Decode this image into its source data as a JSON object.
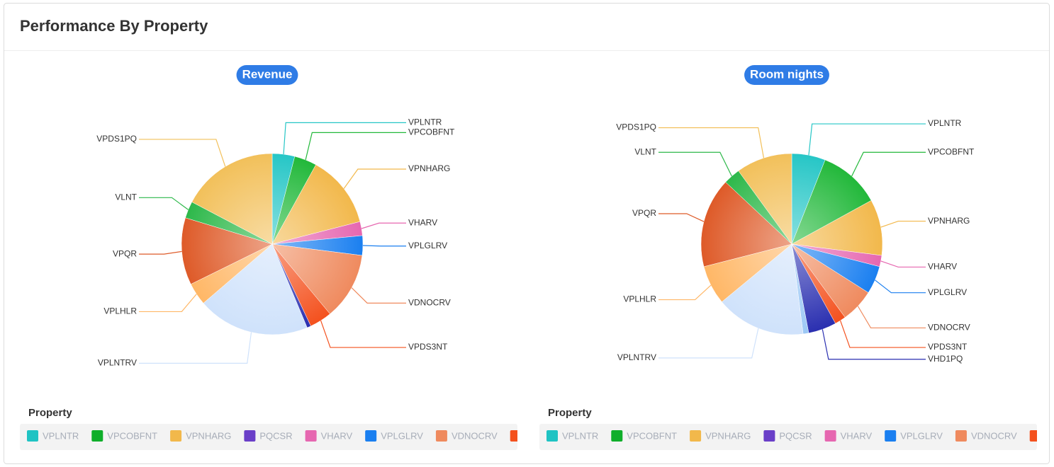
{
  "card_title": "Performance By Property",
  "chart_data": [
    {
      "type": "pie",
      "title": "Revenue",
      "legend_title": "Property",
      "categories": [
        "VPLNTR",
        "VPCOBFNT",
        "VPNHARG",
        "VHARV",
        "VPLGLRV",
        "VDNOCRV",
        "VPDS3NT",
        null,
        "VPLNTRV",
        "VPLHLR",
        "VPQR",
        "VLNT",
        "VPDS1PQ"
      ],
      "values": [
        4,
        4,
        13,
        2.5,
        3.5,
        12,
        4,
        0.7,
        20,
        4,
        12,
        3,
        17.3
      ],
      "colors": [
        "#26c6c6",
        "#22b83a",
        "#f2b84b",
        "#e667b0",
        "#1a7ff0",
        "#ef8a5e",
        "#f4511e",
        "#2a2fb0",
        "#cfe2fb",
        "#ffb766",
        "#de5a28",
        "#2db84a",
        "#f2c05a"
      ],
      "legend": [
        {
          "name": "VPLNTR",
          "color": "#1fc3c3"
        },
        {
          "name": "VPCOBFNT",
          "color": "#0fae2a"
        },
        {
          "name": "VPNHARG",
          "color": "#f2b84b"
        },
        {
          "name": "PQCSR",
          "color": "#6a3fc8"
        },
        {
          "name": "VHARV",
          "color": "#e667b0"
        },
        {
          "name": "VPLGLRV",
          "color": "#1a7ff0"
        },
        {
          "name": "VDNOCRV",
          "color": "#ef8a5e"
        },
        {
          "name": null,
          "color": "#f4511e"
        }
      ]
    },
    {
      "type": "pie",
      "title": "Room nights",
      "legend_title": "Property",
      "categories": [
        "VPLNTR",
        "VPCOBFNT",
        "VPNHARG",
        "VHARV",
        "VPLGLRV",
        "VDNOCRV",
        "VPDS3NT",
        "VHD1PQ",
        null,
        "VPLNTRV",
        "VPLHLR",
        "VPQR",
        "VLNT",
        "VPDS1PQ"
      ],
      "values": [
        6,
        11,
        10,
        2,
        5,
        6,
        2,
        5,
        1,
        16,
        7,
        16,
        3,
        10
      ],
      "colors": [
        "#26c6c6",
        "#22b83a",
        "#f2b84b",
        "#e667b0",
        "#1a7ff0",
        "#ef8a5e",
        "#f4511e",
        "#2a2fb0",
        "#9cc8f5",
        "#cfe2fb",
        "#ffb766",
        "#de5a28",
        "#2db84a",
        "#f2c05a"
      ],
      "legend": [
        {
          "name": "VPLNTR",
          "color": "#1fc3c3"
        },
        {
          "name": "VPCOBFNT",
          "color": "#0fae2a"
        },
        {
          "name": "VPNHARG",
          "color": "#f2b84b"
        },
        {
          "name": "PQCSR",
          "color": "#6a3fc8"
        },
        {
          "name": "VHARV",
          "color": "#e667b0"
        },
        {
          "name": "VPLGLRV",
          "color": "#1a7ff0"
        },
        {
          "name": "VDNOCRV",
          "color": "#ef8a5e"
        },
        {
          "name": null,
          "color": "#f4511e"
        }
      ]
    }
  ]
}
